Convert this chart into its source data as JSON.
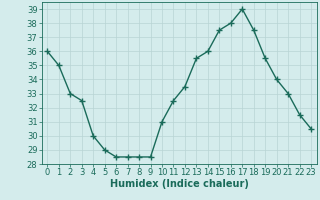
{
  "x": [
    0,
    1,
    2,
    3,
    4,
    5,
    6,
    7,
    8,
    9,
    10,
    11,
    12,
    13,
    14,
    15,
    16,
    17,
    18,
    19,
    20,
    21,
    22,
    23
  ],
  "y": [
    36,
    35,
    33,
    32.5,
    30,
    29,
    28.5,
    28.5,
    28.5,
    28.5,
    31,
    32.5,
    33.5,
    35.5,
    36,
    37.5,
    38,
    39,
    37.5,
    35.5,
    34,
    33,
    31.5,
    30.5
  ],
  "line_color": "#1a6b5a",
  "marker": "+",
  "markersize": 4,
  "linewidth": 1.0,
  "bg_color": "#d4ecec",
  "grid_color": "#b8d4d4",
  "xlabel": "Humidex (Indice chaleur)",
  "xlabel_fontsize": 7,
  "tick_fontsize": 6,
  "ylim": [
    28,
    39.5
  ],
  "xlim": [
    -0.5,
    23.5
  ],
  "yticks": [
    28,
    29,
    30,
    31,
    32,
    33,
    34,
    35,
    36,
    37,
    38,
    39
  ],
  "xticks": [
    0,
    1,
    2,
    3,
    4,
    5,
    6,
    7,
    8,
    9,
    10,
    11,
    12,
    13,
    14,
    15,
    16,
    17,
    18,
    19,
    20,
    21,
    22,
    23
  ]
}
